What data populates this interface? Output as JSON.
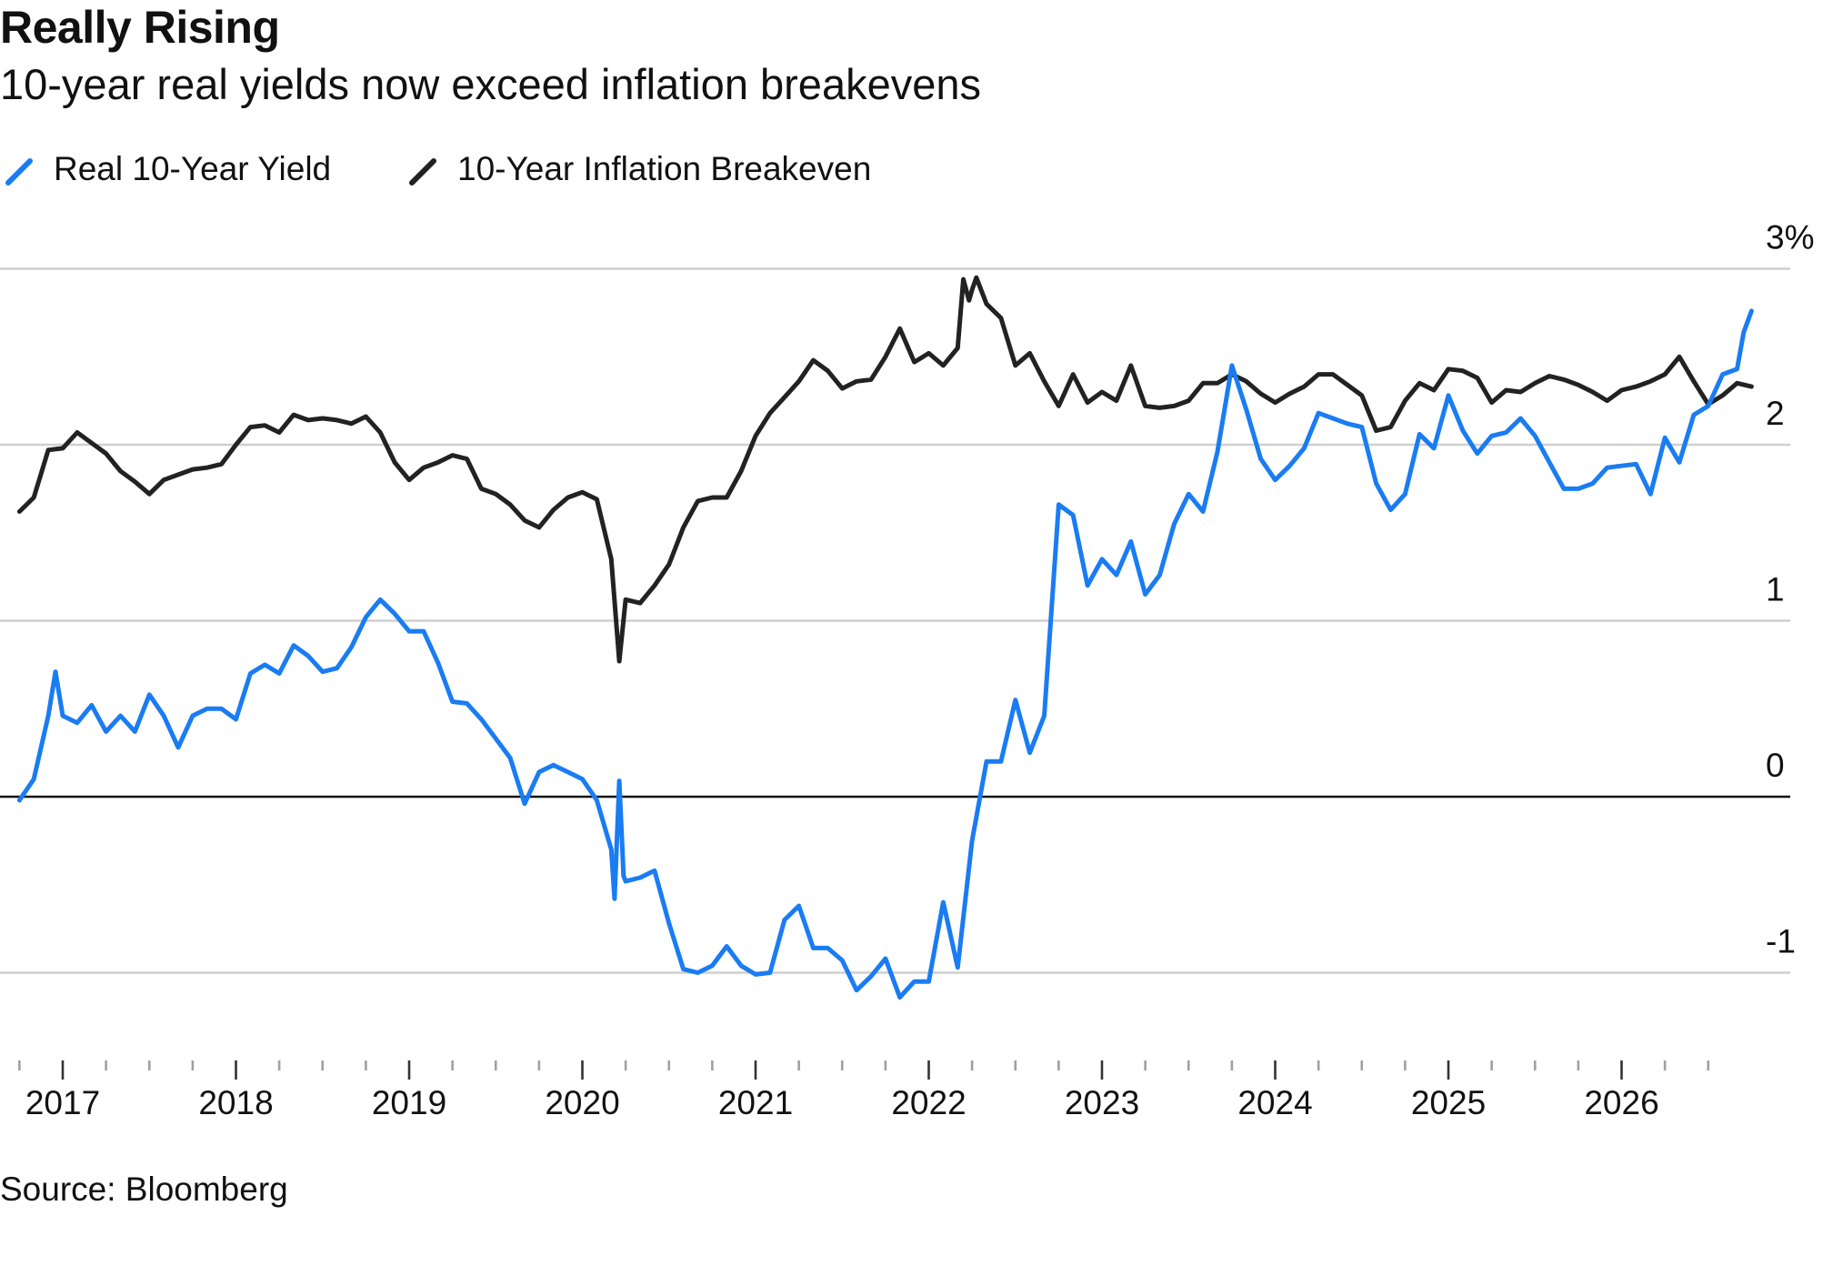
{
  "chart_data": {
    "type": "line",
    "title": "Really Rising",
    "subtitle": "10-year real yields now exceed inflation breakevens",
    "source": "Source: Bloomberg",
    "legend_position": "top-left",
    "grid": true,
    "ylim": [
      -1.2,
      3.0
    ],
    "y_ticks": [
      {
        "value": 3,
        "label": "3%"
      },
      {
        "value": 2,
        "label": "2"
      },
      {
        "value": 1,
        "label": "1"
      },
      {
        "value": 0,
        "label": "0"
      },
      {
        "value": -1,
        "label": "-1"
      }
    ],
    "x_tick_labels": [
      "2017",
      "2018",
      "2019",
      "2020",
      "2021",
      "2022",
      "2023",
      "2024",
      "2025",
      "2026"
    ],
    "series": [
      {
        "name": "Real 10-Year Yield",
        "color": "#1a7cf2",
        "points": [
          [
            "2016-10",
            -0.02
          ],
          [
            "2016-11",
            0.1
          ],
          [
            "2016-12",
            0.46
          ],
          [
            "2016-12-16",
            0.71
          ],
          [
            "2017-01",
            0.46
          ],
          [
            "2017-02",
            0.42
          ],
          [
            "2017-03",
            0.52
          ],
          [
            "2017-04",
            0.37
          ],
          [
            "2017-05",
            0.46
          ],
          [
            "2017-06",
            0.37
          ],
          [
            "2017-07",
            0.58
          ],
          [
            "2017-08",
            0.46
          ],
          [
            "2017-09",
            0.28
          ],
          [
            "2017-10",
            0.46
          ],
          [
            "2017-11",
            0.5
          ],
          [
            "2017-12",
            0.5
          ],
          [
            "2018-01",
            0.44
          ],
          [
            "2018-02",
            0.7
          ],
          [
            "2018-03",
            0.75
          ],
          [
            "2018-04",
            0.7
          ],
          [
            "2018-05",
            0.86
          ],
          [
            "2018-06",
            0.8
          ],
          [
            "2018-07",
            0.71
          ],
          [
            "2018-08",
            0.73
          ],
          [
            "2018-09",
            0.85
          ],
          [
            "2018-10",
            1.02
          ],
          [
            "2018-11",
            1.12
          ],
          [
            "2018-12",
            1.04
          ],
          [
            "2019-01",
            0.94
          ],
          [
            "2019-02",
            0.94
          ],
          [
            "2019-03",
            0.76
          ],
          [
            "2019-04",
            0.54
          ],
          [
            "2019-05",
            0.53
          ],
          [
            "2019-06",
            0.44
          ],
          [
            "2019-07",
            0.33
          ],
          [
            "2019-08",
            0.22
          ],
          [
            "2019-09",
            -0.04
          ],
          [
            "2019-10",
            0.14
          ],
          [
            "2019-11",
            0.18
          ],
          [
            "2019-12",
            0.14
          ],
          [
            "2020-01",
            0.1
          ],
          [
            "2020-02",
            -0.02
          ],
          [
            "2020-03",
            -0.3
          ],
          [
            "2020-03-08",
            -0.58
          ],
          [
            "2020-03-18",
            0.09
          ],
          [
            "2020-03-27",
            -0.45
          ],
          [
            "2020-04",
            -0.48
          ],
          [
            "2020-05",
            -0.46
          ],
          [
            "2020-06",
            -0.42
          ],
          [
            "2020-07",
            -0.72
          ],
          [
            "2020-08",
            -0.98
          ],
          [
            "2020-09",
            -1.0
          ],
          [
            "2020-10",
            -0.96
          ],
          [
            "2020-11",
            -0.85
          ],
          [
            "2020-12",
            -0.96
          ],
          [
            "2021-01",
            -1.01
          ],
          [
            "2021-02",
            -1.0
          ],
          [
            "2021-03",
            -0.7
          ],
          [
            "2021-04",
            -0.62
          ],
          [
            "2021-05",
            -0.86
          ],
          [
            "2021-06",
            -0.86
          ],
          [
            "2021-07",
            -0.93
          ],
          [
            "2021-08",
            -1.1
          ],
          [
            "2021-09",
            -1.02
          ],
          [
            "2021-10",
            -0.92
          ],
          [
            "2021-11",
            -1.14
          ],
          [
            "2021-12",
            -1.05
          ],
          [
            "2022-01",
            -1.05
          ],
          [
            "2022-02",
            -0.6
          ],
          [
            "2022-03",
            -0.97
          ],
          [
            "2022-04",
            -0.25
          ],
          [
            "2022-05",
            0.2
          ],
          [
            "2022-06",
            0.2
          ],
          [
            "2022-07",
            0.55
          ],
          [
            "2022-08",
            0.25
          ],
          [
            "2022-09",
            0.46
          ],
          [
            "2022-10",
            1.66
          ],
          [
            "2022-11",
            1.6
          ],
          [
            "2022-12",
            1.2
          ],
          [
            "2023-01",
            1.35
          ],
          [
            "2023-02",
            1.26
          ],
          [
            "2023-03",
            1.45
          ],
          [
            "2023-04",
            1.15
          ],
          [
            "2023-05",
            1.26
          ],
          [
            "2023-06",
            1.55
          ],
          [
            "2023-07",
            1.72
          ],
          [
            "2023-08",
            1.62
          ],
          [
            "2023-09",
            1.96
          ],
          [
            "2023-10",
            2.45
          ],
          [
            "2023-11",
            2.2
          ],
          [
            "2023-12",
            1.92
          ],
          [
            "2024-01",
            1.8
          ],
          [
            "2024-02",
            1.88
          ],
          [
            "2024-03",
            1.98
          ],
          [
            "2024-04",
            2.18
          ],
          [
            "2024-05",
            2.15
          ],
          [
            "2024-06",
            2.12
          ],
          [
            "2024-07",
            2.1
          ],
          [
            "2024-08",
            1.78
          ],
          [
            "2024-09",
            1.63
          ],
          [
            "2024-10",
            1.72
          ],
          [
            "2024-11",
            2.06
          ],
          [
            "2024-12",
            1.98
          ],
          [
            "2025-01",
            2.28
          ],
          [
            "2025-02",
            2.08
          ],
          [
            "2025-03",
            1.95
          ],
          [
            "2025-04",
            2.05
          ],
          [
            "2025-05",
            2.07
          ],
          [
            "2025-06",
            2.15
          ],
          [
            "2025-07",
            2.05
          ],
          [
            "2025-08",
            1.9
          ],
          [
            "2025-09",
            1.75
          ],
          [
            "2025-10",
            1.75
          ],
          [
            "2025-11",
            1.78
          ],
          [
            "2025-12",
            1.87
          ],
          [
            "2026-01",
            1.88
          ],
          [
            "2026-02",
            1.89
          ],
          [
            "2026-03",
            1.72
          ],
          [
            "2026-04",
            2.04
          ],
          [
            "2026-05",
            1.9
          ],
          [
            "2026-06",
            2.17
          ],
          [
            "2026-07",
            2.22
          ],
          [
            "2026-08",
            2.4
          ],
          [
            "2026-09",
            2.43
          ],
          [
            "2026-09-15",
            2.64
          ],
          [
            "2026-10",
            2.76
          ]
        ]
      },
      {
        "name": "10-Year Inflation Breakeven",
        "color": "#222222",
        "points": [
          [
            "2016-10",
            1.62
          ],
          [
            "2016-11",
            1.7
          ],
          [
            "2016-12",
            1.97
          ],
          [
            "2017-01",
            1.98
          ],
          [
            "2017-02",
            2.07
          ],
          [
            "2017-03",
            2.01
          ],
          [
            "2017-04",
            1.95
          ],
          [
            "2017-05",
            1.85
          ],
          [
            "2017-06",
            1.79
          ],
          [
            "2017-07",
            1.72
          ],
          [
            "2017-08",
            1.8
          ],
          [
            "2017-09",
            1.83
          ],
          [
            "2017-10",
            1.86
          ],
          [
            "2017-11",
            1.87
          ],
          [
            "2017-12",
            1.89
          ],
          [
            "2018-01",
            2.0
          ],
          [
            "2018-02",
            2.1
          ],
          [
            "2018-03",
            2.11
          ],
          [
            "2018-04",
            2.07
          ],
          [
            "2018-05",
            2.17
          ],
          [
            "2018-06",
            2.14
          ],
          [
            "2018-07",
            2.15
          ],
          [
            "2018-08",
            2.14
          ],
          [
            "2018-09",
            2.12
          ],
          [
            "2018-10",
            2.16
          ],
          [
            "2018-11",
            2.07
          ],
          [
            "2018-12",
            1.9
          ],
          [
            "2019-01",
            1.8
          ],
          [
            "2019-02",
            1.87
          ],
          [
            "2019-03",
            1.9
          ],
          [
            "2019-04",
            1.94
          ],
          [
            "2019-05",
            1.92
          ],
          [
            "2019-06",
            1.75
          ],
          [
            "2019-07",
            1.72
          ],
          [
            "2019-08",
            1.66
          ],
          [
            "2019-09",
            1.57
          ],
          [
            "2019-10",
            1.53
          ],
          [
            "2019-11",
            1.63
          ],
          [
            "2019-12",
            1.7
          ],
          [
            "2020-01",
            1.73
          ],
          [
            "2020-02",
            1.69
          ],
          [
            "2020-03",
            1.35
          ],
          [
            "2020-03-18",
            0.77
          ],
          [
            "2020-04",
            1.12
          ],
          [
            "2020-05",
            1.1
          ],
          [
            "2020-06",
            1.2
          ],
          [
            "2020-07",
            1.32
          ],
          [
            "2020-08",
            1.53
          ],
          [
            "2020-09",
            1.68
          ],
          [
            "2020-10",
            1.7
          ],
          [
            "2020-11",
            1.7
          ],
          [
            "2020-12",
            1.85
          ],
          [
            "2021-01",
            2.05
          ],
          [
            "2021-02",
            2.18
          ],
          [
            "2021-03",
            2.27
          ],
          [
            "2021-04",
            2.36
          ],
          [
            "2021-05",
            2.48
          ],
          [
            "2021-06",
            2.42
          ],
          [
            "2021-07",
            2.32
          ],
          [
            "2021-08",
            2.36
          ],
          [
            "2021-09",
            2.37
          ],
          [
            "2021-10",
            2.5
          ],
          [
            "2021-11",
            2.66
          ],
          [
            "2021-12",
            2.47
          ],
          [
            "2022-01",
            2.52
          ],
          [
            "2022-02",
            2.45
          ],
          [
            "2022-03",
            2.55
          ],
          [
            "2022-03-13",
            2.94
          ],
          [
            "2022-03-25",
            2.82
          ],
          [
            "2022-04",
            2.88
          ],
          [
            "2022-04-10",
            2.95
          ],
          [
            "2022-05",
            2.8
          ],
          [
            "2022-06",
            2.72
          ],
          [
            "2022-07",
            2.45
          ],
          [
            "2022-08",
            2.52
          ],
          [
            "2022-09",
            2.36
          ],
          [
            "2022-10",
            2.22
          ],
          [
            "2022-11",
            2.4
          ],
          [
            "2022-12",
            2.24
          ],
          [
            "2023-01",
            2.3
          ],
          [
            "2023-02",
            2.25
          ],
          [
            "2023-03",
            2.45
          ],
          [
            "2023-04",
            2.22
          ],
          [
            "2023-05",
            2.21
          ],
          [
            "2023-06",
            2.22
          ],
          [
            "2023-07",
            2.25
          ],
          [
            "2023-08",
            2.35
          ],
          [
            "2023-09",
            2.35
          ],
          [
            "2023-10",
            2.4
          ],
          [
            "2023-11",
            2.36
          ],
          [
            "2023-12",
            2.29
          ],
          [
            "2024-01",
            2.24
          ],
          [
            "2024-02",
            2.29
          ],
          [
            "2024-03",
            2.33
          ],
          [
            "2024-04",
            2.4
          ],
          [
            "2024-05",
            2.4
          ],
          [
            "2024-06",
            2.34
          ],
          [
            "2024-07",
            2.28
          ],
          [
            "2024-08",
            2.08
          ],
          [
            "2024-09",
            2.1
          ],
          [
            "2024-10",
            2.25
          ],
          [
            "2024-11",
            2.35
          ],
          [
            "2024-12",
            2.31
          ],
          [
            "2025-01",
            2.43
          ],
          [
            "2025-02",
            2.42
          ],
          [
            "2025-03",
            2.38
          ],
          [
            "2025-04",
            2.24
          ],
          [
            "2025-05",
            2.31
          ],
          [
            "2025-06",
            2.3
          ],
          [
            "2025-07",
            2.35
          ],
          [
            "2025-08",
            2.39
          ],
          [
            "2025-09",
            2.37
          ],
          [
            "2025-10",
            2.34
          ],
          [
            "2025-11",
            2.3
          ],
          [
            "2025-12",
            2.25
          ],
          [
            "2026-01",
            2.31
          ],
          [
            "2026-02",
            2.33
          ],
          [
            "2026-03",
            2.36
          ],
          [
            "2026-04",
            2.4
          ],
          [
            "2026-05",
            2.5
          ],
          [
            "2026-06",
            2.36
          ],
          [
            "2026-07",
            2.23
          ],
          [
            "2026-08",
            2.28
          ],
          [
            "2026-09",
            2.35
          ],
          [
            "2026-10",
            2.33
          ]
        ]
      }
    ]
  }
}
